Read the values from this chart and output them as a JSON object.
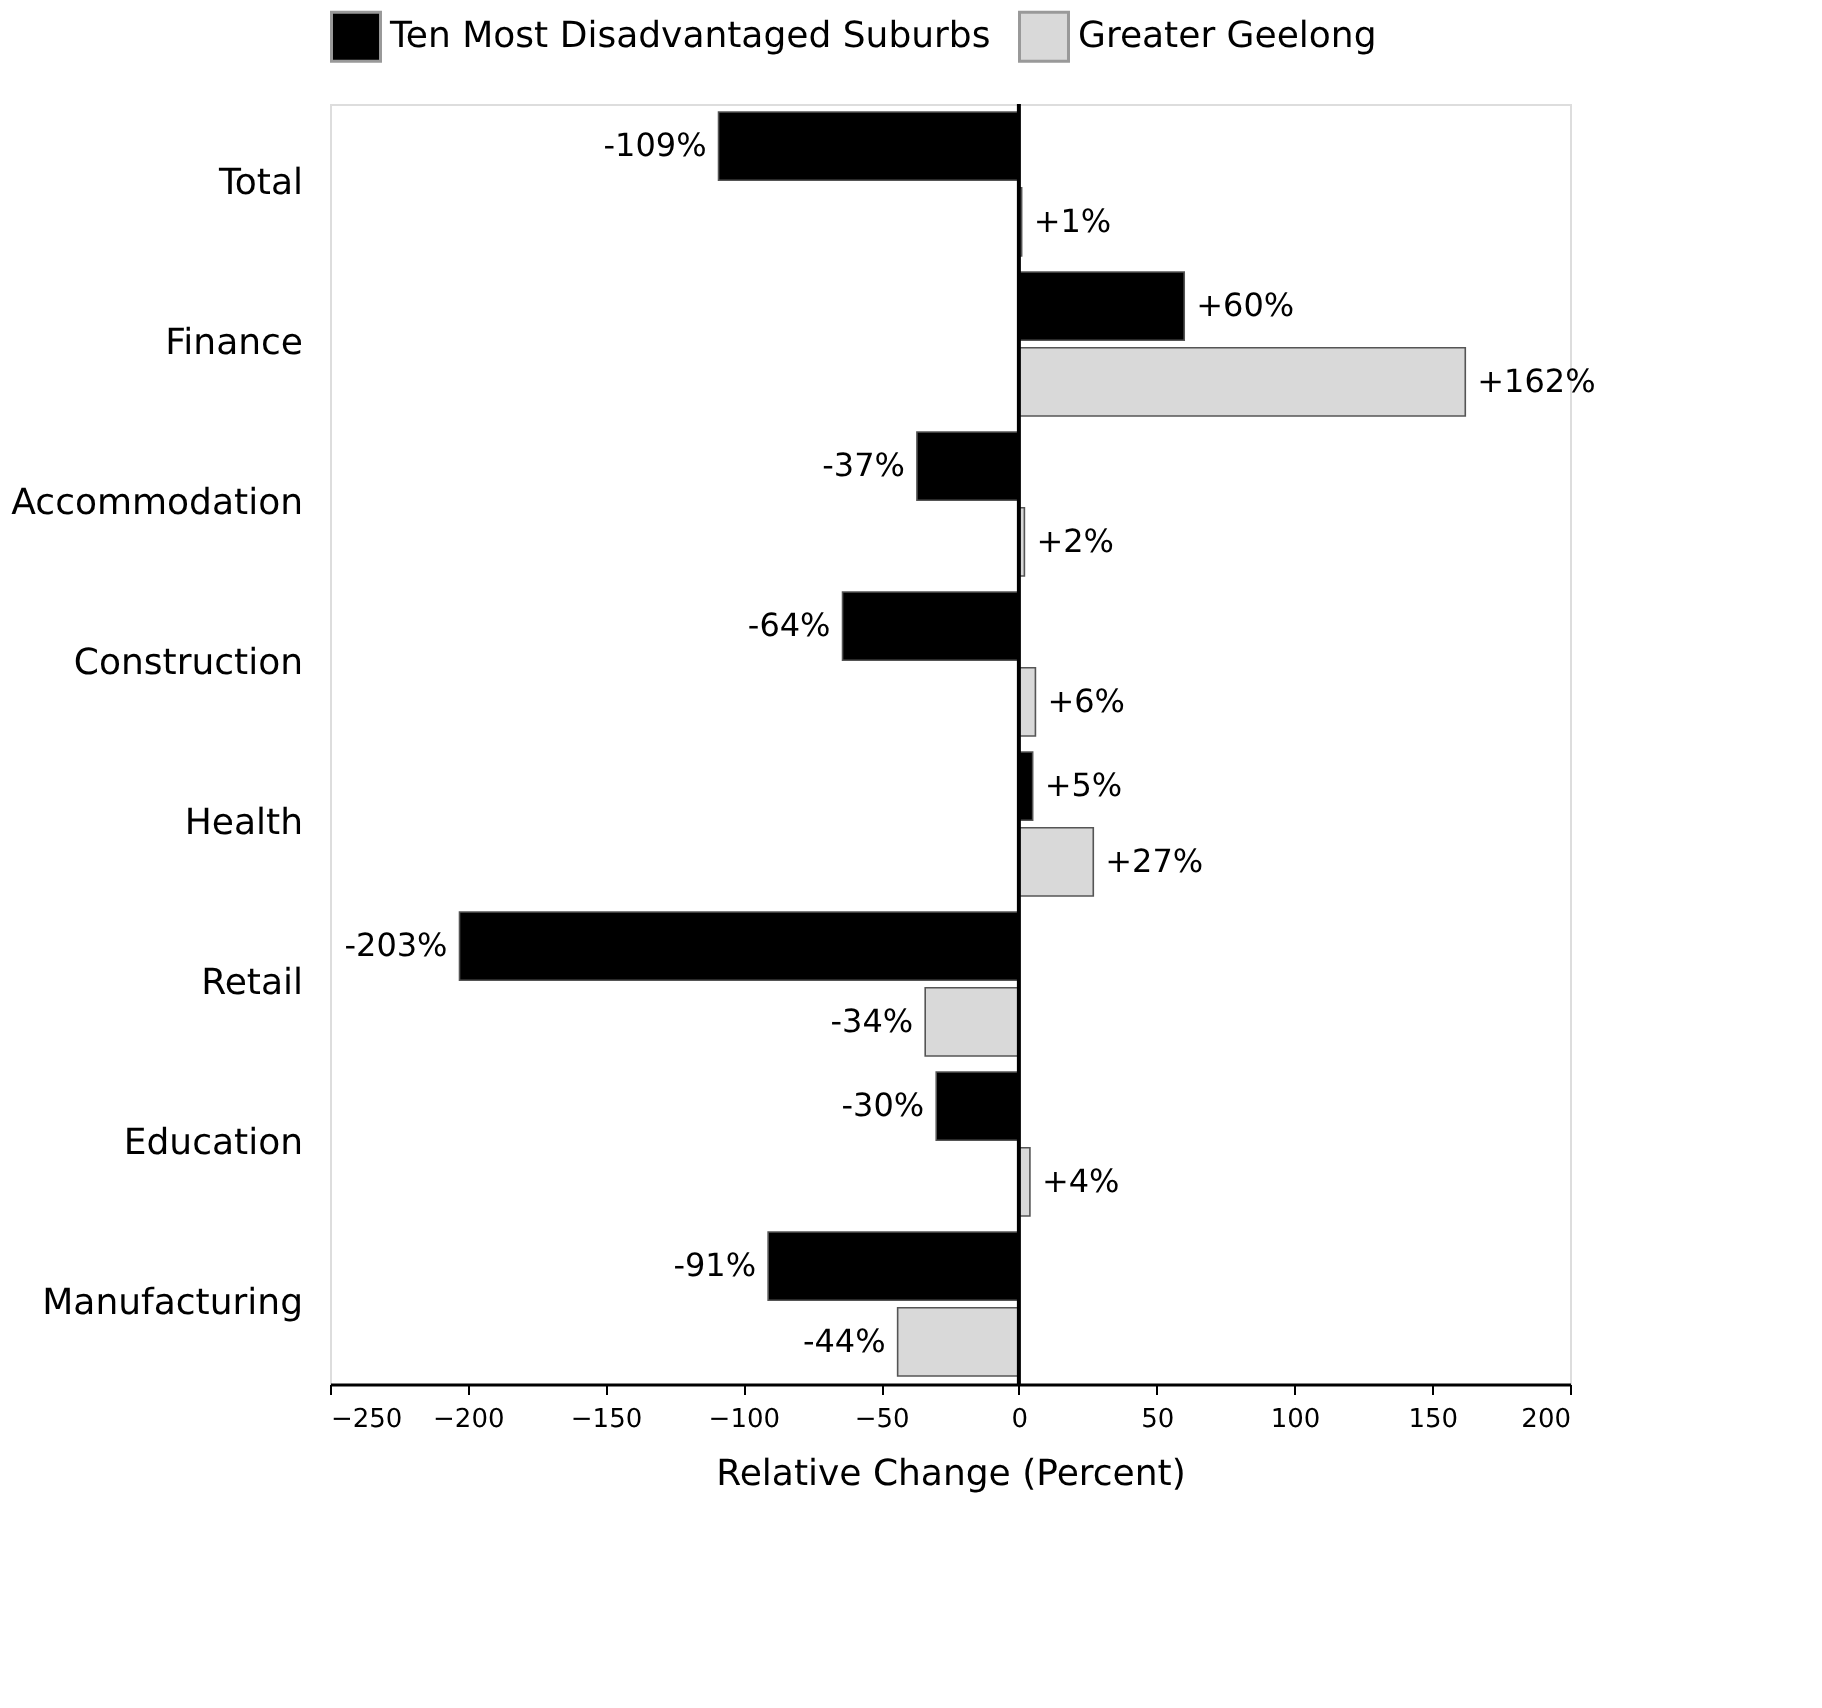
{
  "chart_data": {
    "type": "bar",
    "orientation": "horizontal",
    "categories": [
      "Total",
      "Finance",
      "Accommodation",
      "Construction",
      "Health",
      "Retail",
      "Education",
      "Manufacturing"
    ],
    "series": [
      {
        "name": "Ten Most Disadvantaged Suburbs",
        "color": "#000000",
        "values": [
          -109,
          60,
          -37,
          -64,
          5,
          -203,
          -30,
          -91
        ],
        "value_labels": [
          "-109%",
          "+60%",
          "-37%",
          "-64%",
          "+5%",
          "-203%",
          "-30%",
          "-91%"
        ]
      },
      {
        "name": "Greater Geelong",
        "color": "#d9d9d9",
        "values": [
          1,
          162,
          2,
          6,
          27,
          -34,
          4,
          -44
        ],
        "value_labels": [
          "+1%",
          "+162%",
          "+2%",
          "+6%",
          "+27%",
          "-34%",
          "+4%",
          "-44%"
        ]
      }
    ],
    "xlim": [
      -250,
      200
    ],
    "xticks": [
      -250,
      -200,
      -150,
      -100,
      -50,
      0,
      50,
      100,
      150,
      200
    ],
    "xlabel": "Relative Change (Percent)",
    "ref_lines": [
      {
        "axis": "x",
        "value": 0,
        "color": "#000000"
      }
    ],
    "grid": false,
    "legend": "top"
  }
}
